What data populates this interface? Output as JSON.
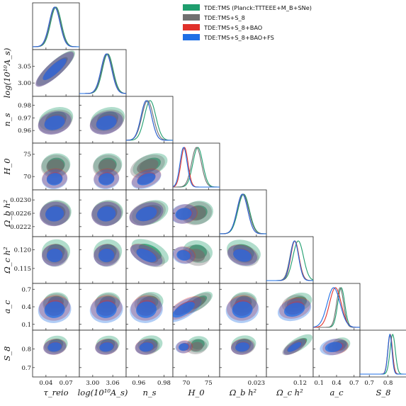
{
  "chart_data": {
    "type": "corner",
    "parameters": [
      {
        "key": "tau",
        "label": "τ_reio",
        "ticks": [
          0.04,
          0.07
        ],
        "tick_labels": [
          "0.04",
          "0.07"
        ],
        "range": [
          0.02,
          0.09
        ]
      },
      {
        "key": "logA",
        "label": "log(10¹⁰A_s)",
        "ticks": [
          3.0,
          3.06
        ],
        "tick_labels": [
          "3.00",
          "3.06"
        ],
        "range": [
          2.96,
          3.1
        ]
      },
      {
        "key": "ns",
        "label": "n_s",
        "ticks": [
          0.96,
          0.98
        ],
        "tick_labels": [
          "0.96",
          "0.98"
        ],
        "range": [
          0.95,
          0.987
        ]
      },
      {
        "key": "H0",
        "label": "H_0",
        "ticks": [
          70,
          75
        ],
        "tick_labels": [
          "70",
          "75"
        ],
        "range": [
          67,
          77.5
        ]
      },
      {
        "key": "ombh2",
        "label": "Ω_b h²",
        "ticks": [
          0.023
        ],
        "tick_labels": [
          "0.023"
        ],
        "range": [
          0.0219,
          0.0233
        ]
      },
      {
        "key": "omch2",
        "label": "Ω_c h²",
        "ticks": [
          0.12
        ],
        "tick_labels": [
          "0.12"
        ],
        "range": [
          0.111,
          0.1235
        ]
      },
      {
        "key": "ac",
        "label": "a_c",
        "ticks": [
          0.1,
          0.4,
          0.7
        ],
        "tick_labels": [
          "0.1",
          "0.4",
          "0.7"
        ],
        "range": [
          0.0,
          0.8
        ]
      },
      {
        "key": "S8",
        "label": "S_8",
        "ticks": [
          0.7,
          0.8
        ],
        "tick_labels": [
          "0.7",
          "0.8"
        ],
        "range": [
          0.65,
          0.9
        ]
      }
    ],
    "y_tick_overrides": {
      "logA": {
        "ticks": [
          3.0,
          3.05
        ],
        "tick_labels": [
          "3.00",
          "3.05"
        ]
      },
      "ns": {
        "ticks": [
          0.96,
          0.97,
          0.98
        ],
        "tick_labels": [
          "0.96",
          "0.97",
          "0.98"
        ]
      },
      "H0": {
        "ticks": [
          70,
          75
        ],
        "tick_labels": [
          "70",
          "75"
        ]
      },
      "ombh2": {
        "ticks": [
          0.0222,
          0.0226,
          0.023
        ],
        "tick_labels": [
          "0.0222",
          "0.0226",
          "0.0230"
        ]
      },
      "omch2": {
        "ticks": [
          0.115,
          0.12
        ],
        "tick_labels": [
          "0.115",
          "0.120"
        ]
      },
      "ac": {
        "ticks": [
          0.1,
          0.4,
          0.7
        ],
        "tick_labels": [
          "0.1",
          "0.4",
          "0.7"
        ]
      },
      "S8": {
        "ticks": [
          0.7,
          0.8
        ],
        "tick_labels": [
          "0.7",
          "0.8"
        ]
      }
    },
    "series": [
      {
        "name": "TDE:TMS (Planck:TTTEEE+M_B+SNe)",
        "color": "#1f9e6e",
        "means": {
          "tau": 0.055,
          "logA": 3.045,
          "ns": 0.969,
          "H0": 72.6,
          "ombh2": 0.02262,
          "omch2": 0.1195,
          "ac": 0.48,
          "S8": 0.825
        },
        "sigmas": {
          "tau": 0.008,
          "logA": 0.016,
          "ns": 0.0045,
          "H0": 1.1,
          "ombh2": 0.00017,
          "omch2": 0.0014,
          "ac": 0.06,
          "S8": 0.014
        }
      },
      {
        "name": "TDE:TMS+S_8",
        "color": "#707070",
        "means": {
          "tau": 0.054,
          "logA": 3.043,
          "ns": 0.967,
          "H0": 72.3,
          "ombh2": 0.0226,
          "omch2": 0.1185,
          "ac": 0.46,
          "S8": 0.812
        },
        "sigmas": {
          "tau": 0.008,
          "logA": 0.016,
          "ns": 0.0045,
          "H0": 1.1,
          "ombh2": 0.00017,
          "omch2": 0.0012,
          "ac": 0.06,
          "S8": 0.012
        }
      },
      {
        "name": "TDE:TMS+S_8+BAO",
        "color": "#e0312b",
        "means": {
          "tau": 0.053,
          "logA": 3.041,
          "ns": 0.966,
          "H0": 69.6,
          "ombh2": 0.02258,
          "omch2": 0.1186,
          "ac": 0.38,
          "S8": 0.811
        },
        "sigmas": {
          "tau": 0.008,
          "logA": 0.016,
          "ns": 0.0042,
          "H0": 0.8,
          "ombh2": 0.00016,
          "omch2": 0.0011,
          "ac": 0.1,
          "S8": 0.012
        }
      },
      {
        "name": "TDE:TMS+S_8+BAO+FS",
        "color": "#1f6fe5",
        "means": {
          "tau": 0.053,
          "logA": 3.041,
          "ns": 0.966,
          "H0": 69.4,
          "ombh2": 0.02258,
          "omch2": 0.1185,
          "ac": 0.35,
          "S8": 0.81
        },
        "sigmas": {
          "tau": 0.008,
          "logA": 0.016,
          "ns": 0.0042,
          "H0": 0.8,
          "ombh2": 0.00016,
          "omch2": 0.0011,
          "ac": 0.11,
          "S8": 0.011
        }
      }
    ],
    "legend_placement": "top-right",
    "grid": false
  }
}
